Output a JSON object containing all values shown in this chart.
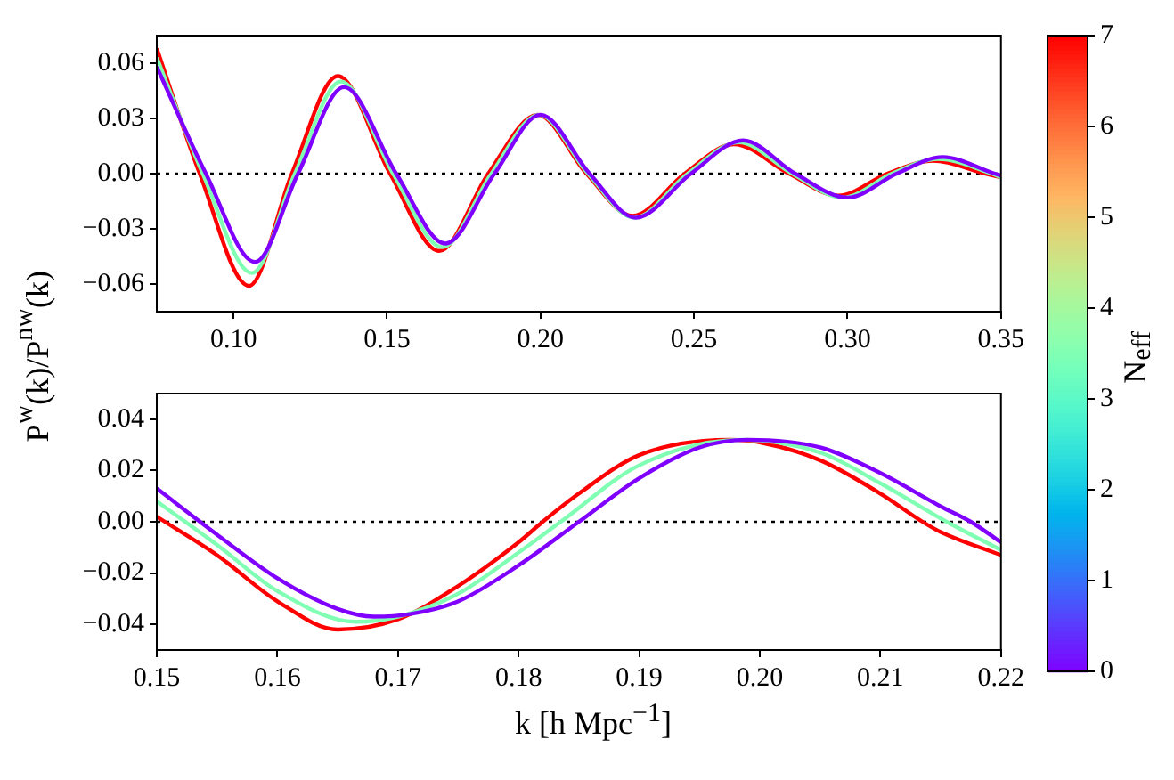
{
  "chart_data": [
    {
      "type": "line",
      "ylabel": "P$^{w}$(k)/P$^{nw}$(k)",
      "xlim": [
        0.075,
        0.35
      ],
      "ylim": [
        -0.075,
        0.075
      ],
      "xticks": [
        {
          "value": 0.1,
          "label": "0.10"
        },
        {
          "value": 0.15,
          "label": "0.15"
        },
        {
          "value": 0.2,
          "label": "0.20"
        },
        {
          "value": 0.25,
          "label": "0.25"
        },
        {
          "value": 0.3,
          "label": "0.30"
        },
        {
          "value": 0.35,
          "label": "0.35"
        }
      ],
      "yticks": [
        {
          "value": -0.06,
          "label": "−0.06"
        },
        {
          "value": -0.03,
          "label": "−0.03"
        },
        {
          "value": 0,
          "label": "0.00"
        },
        {
          "value": 0.03,
          "label": "0.03"
        },
        {
          "value": 0.06,
          "label": "0.06"
        }
      ],
      "marker": "none",
      "line_style": "solid",
      "clabel": "N$_{eff}$",
      "clim": [
        0,
        7
      ],
      "cticks": [
        0,
        1,
        2,
        3,
        4,
        5,
        6,
        7
      ],
      "ref_lines": [
        {
          "axis": "y",
          "value": 0,
          "color": "#000000",
          "line_style": "dotted"
        }
      ],
      "series": [
        {
          "color": "#8000ff",
          "x": [
            0.075,
            0.091,
            0.107,
            0.121,
            0.136,
            0.153,
            0.169,
            0.185,
            0.2,
            0.216,
            0.231,
            0.249,
            0.266,
            0.283,
            0.3,
            0.316,
            0.331,
            0.348,
            0.35
          ],
          "values": [
            0.058,
            0,
            -0.048,
            0,
            0.047,
            0,
            -0.038,
            0,
            0.032,
            0,
            -0.024,
            0,
            0.018,
            0,
            -0.013,
            0,
            0.009,
            0,
            -0.001
          ]
        },
        {
          "color": "#80ffb4",
          "x": [
            0.075,
            0.09,
            0.106,
            0.12,
            0.135,
            0.152,
            0.168,
            0.184,
            0.1995,
            0.2155,
            0.2305,
            0.248,
            0.2645,
            0.282,
            0.2985,
            0.3145,
            0.3295,
            0.347,
            0.35
          ],
          "values": [
            0.063,
            0,
            -0.054,
            0,
            0.05,
            0,
            -0.04,
            0,
            0.032,
            0,
            -0.024,
            0,
            0.017,
            0,
            -0.013,
            0,
            0.008,
            0,
            -0.002
          ]
        },
        {
          "color": "#ff0000",
          "x": [
            0.075,
            0.089,
            0.105,
            0.119,
            0.134,
            0.151,
            0.167,
            0.183,
            0.199,
            0.215,
            0.23,
            0.247,
            0.263,
            0.281,
            0.297,
            0.313,
            0.328,
            0.345,
            0.35
          ],
          "values": [
            0.068,
            0,
            -0.061,
            0,
            0.053,
            0,
            -0.042,
            0,
            0.032,
            0,
            -0.023,
            0,
            0.016,
            0,
            -0.012,
            0,
            0.007,
            0,
            -0.002
          ]
        }
      ]
    },
    {
      "type": "line",
      "xlabel": "k [h Mpc$^{−1}$]",
      "xlim": [
        0.15,
        0.22
      ],
      "ylim": [
        -0.05,
        0.05
      ],
      "xticks": [
        {
          "value": 0.15,
          "label": "0.15"
        },
        {
          "value": 0.16,
          "label": "0.16"
        },
        {
          "value": 0.17,
          "label": "0.17"
        },
        {
          "value": 0.18,
          "label": "0.18"
        },
        {
          "value": 0.19,
          "label": "0.19"
        },
        {
          "value": 0.2,
          "label": "0.20"
        },
        {
          "value": 0.21,
          "label": "0.21"
        },
        {
          "value": 0.22,
          "label": "0.22"
        }
      ],
      "yticks": [
        {
          "value": -0.04,
          "label": "−0.04"
        },
        {
          "value": -0.02,
          "label": "−0.02"
        },
        {
          "value": 0,
          "label": "0.00"
        },
        {
          "value": 0.02,
          "label": "0.02"
        },
        {
          "value": 0.04,
          "label": "0.04"
        }
      ],
      "marker": "none",
      "line_style": "solid",
      "ref_lines": [
        {
          "axis": "y",
          "value": 0,
          "color": "#000000",
          "line_style": "dotted"
        }
      ],
      "series": [
        {
          "color": "#8000ff",
          "x": [
            0.15,
            0.155,
            0.16,
            0.165,
            0.168,
            0.171,
            0.175,
            0.18,
            0.185,
            0.19,
            0.195,
            0.199,
            0.205,
            0.21,
            0.215,
            0.2175,
            0.22
          ],
          "values": [
            0.013,
            -0.005,
            -0.022,
            -0.034,
            -0.037,
            -0.036,
            -0.031,
            -0.017,
            0,
            0.017,
            0.029,
            0.032,
            0.029,
            0.019,
            0.006,
            0,
            -0.008
          ]
        },
        {
          "color": "#80ffb4",
          "x": [
            0.15,
            0.155,
            0.16,
            0.1665,
            0.17,
            0.175,
            0.18,
            0.1835,
            0.19,
            0.1985,
            0.205,
            0.21,
            0.2155,
            0.22
          ],
          "values": [
            0.008,
            -0.009,
            -0.027,
            -0.039,
            -0.037,
            -0.028,
            -0.012,
            0,
            0.022,
            0.032,
            0.027,
            0.015,
            0,
            -0.011
          ]
        },
        {
          "color": "#ff0000",
          "x": [
            0.15,
            0.155,
            0.16,
            0.165,
            0.17,
            0.175,
            0.18,
            0.182,
            0.185,
            0.19,
            0.1975,
            0.2,
            0.205,
            0.21,
            0.2135,
            0.215,
            0.22
          ],
          "values": [
            0.002,
            -0.013,
            -0.031,
            -0.042,
            -0.038,
            -0.025,
            -0.008,
            0,
            0.011,
            0.026,
            0.032,
            0.031,
            0.024,
            0.011,
            0,
            -0.004,
            -0.013
          ]
        }
      ]
    }
  ]
}
